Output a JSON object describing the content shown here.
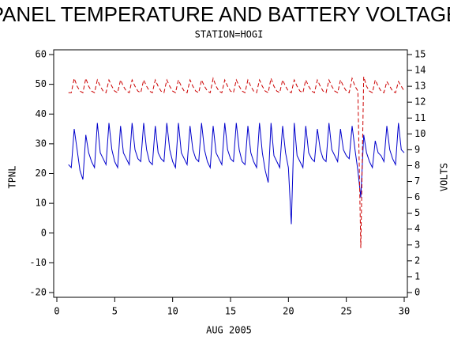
{
  "chart_data": {
    "type": "line",
    "title": "PANEL TEMPERATURE AND BATTERY VOLTAGE",
    "subtitle": "STATION=HOGI",
    "xlabel": "AUG 2005",
    "ylabel": "TPNL",
    "y2label": "VOLTS",
    "xlim": [
      0,
      30
    ],
    "xticks": [
      0,
      5,
      10,
      15,
      20,
      25,
      30
    ],
    "ylim": [
      -20,
      60
    ],
    "yticks": [
      -20,
      -10,
      0,
      10,
      20,
      30,
      40,
      50,
      60
    ],
    "y2lim": [
      0,
      15
    ],
    "y2ticks": [
      0,
      1,
      2,
      3,
      4,
      5,
      6,
      7,
      8,
      9,
      10,
      11,
      12,
      13,
      14,
      15
    ],
    "x": [
      1,
      1.25,
      1.5,
      1.75,
      2,
      2.25,
      2.5,
      2.75,
      3,
      3.25,
      3.5,
      3.75,
      4,
      4.25,
      4.5,
      4.75,
      5,
      5.25,
      5.5,
      5.75,
      6,
      6.25,
      6.5,
      6.75,
      7,
      7.25,
      7.5,
      7.75,
      8,
      8.25,
      8.5,
      8.75,
      9,
      9.25,
      9.5,
      9.75,
      10,
      10.25,
      10.5,
      10.75,
      11,
      11.25,
      11.5,
      11.75,
      12,
      12.25,
      12.5,
      12.75,
      13,
      13.25,
      13.5,
      13.75,
      14,
      14.25,
      14.5,
      14.75,
      15,
      15.25,
      15.5,
      15.75,
      16,
      16.25,
      16.5,
      16.75,
      17,
      17.25,
      17.5,
      17.75,
      18,
      18.25,
      18.5,
      18.75,
      19,
      19.25,
      19.5,
      19.75,
      20,
      20.25,
      20.5,
      20.75,
      21,
      21.25,
      21.5,
      21.75,
      22,
      22.25,
      22.5,
      22.75,
      23,
      23.25,
      23.5,
      23.75,
      24,
      24.25,
      24.5,
      24.75,
      25,
      25.25,
      25.5,
      25.75,
      26,
      26.25,
      26.5,
      26.75,
      27,
      27.25,
      27.5,
      27.75,
      28,
      28.25,
      28.5,
      28.75,
      29,
      29.25,
      29.5,
      29.75,
      30
    ],
    "series": [
      {
        "color": "#0000cc",
        "dash": false,
        "values": [
          23,
          22,
          35,
          28,
          21,
          18,
          33,
          27,
          24,
          22,
          37,
          27,
          25,
          23,
          37,
          28,
          24,
          22,
          36,
          27,
          25,
          23,
          37,
          28,
          25,
          24,
          37,
          28,
          24,
          23,
          36,
          27,
          25,
          24,
          37,
          28,
          24,
          22,
          37,
          27,
          25,
          23,
          36,
          28,
          25,
          24,
          37,
          28,
          24,
          22,
          36,
          27,
          25,
          23,
          37,
          28,
          25,
          24,
          37,
          28,
          24,
          23,
          36,
          27,
          24,
          22,
          37,
          27,
          21,
          17,
          37,
          26,
          24,
          22,
          36,
          27,
          22,
          3,
          37,
          26,
          24,
          22,
          36,
          27,
          25,
          24,
          35,
          28,
          25,
          24,
          37,
          28,
          26,
          24,
          35,
          28,
          26,
          25,
          36,
          28,
          21,
          12,
          33,
          27,
          24,
          22,
          31,
          27,
          26,
          24,
          36,
          28,
          25,
          23,
          37,
          28,
          27
        ]
      },
      {
        "color": "#cc0000",
        "dash": true,
        "axis": "y2",
        "values": [
          12.6,
          12.6,
          13.5,
          13.0,
          12.7,
          12.6,
          13.5,
          13.0,
          12.7,
          12.6,
          13.4,
          13.0,
          12.7,
          12.6,
          13.4,
          13.0,
          12.7,
          12.6,
          13.4,
          13.0,
          12.7,
          12.6,
          13.4,
          13.0,
          12.7,
          12.6,
          13.4,
          13.0,
          12.7,
          12.6,
          13.4,
          13.0,
          12.7,
          12.6,
          13.4,
          13.0,
          12.7,
          12.6,
          13.4,
          13.0,
          12.7,
          12.6,
          13.4,
          13.0,
          12.7,
          12.6,
          13.4,
          13.0,
          12.7,
          12.6,
          13.5,
          13.0,
          12.7,
          12.6,
          13.4,
          13.0,
          12.7,
          12.6,
          13.4,
          13.0,
          12.7,
          12.6,
          13.4,
          13.0,
          12.7,
          12.6,
          13.4,
          13.0,
          12.7,
          12.6,
          13.5,
          13.0,
          12.7,
          12.6,
          13.4,
          13.0,
          12.7,
          12.6,
          13.4,
          13.0,
          12.7,
          12.6,
          13.4,
          13.0,
          12.7,
          12.6,
          13.4,
          13.0,
          12.7,
          12.6,
          13.4,
          13.0,
          12.7,
          12.6,
          13.4,
          13.0,
          12.7,
          12.6,
          13.5,
          13.0,
          12.7,
          2.8,
          13.6,
          13.0,
          12.7,
          12.6,
          13.4,
          13.0,
          12.7,
          12.6,
          13.3,
          13.0,
          12.7,
          12.6,
          13.3,
          13.0,
          12.7
        ]
      }
    ]
  }
}
